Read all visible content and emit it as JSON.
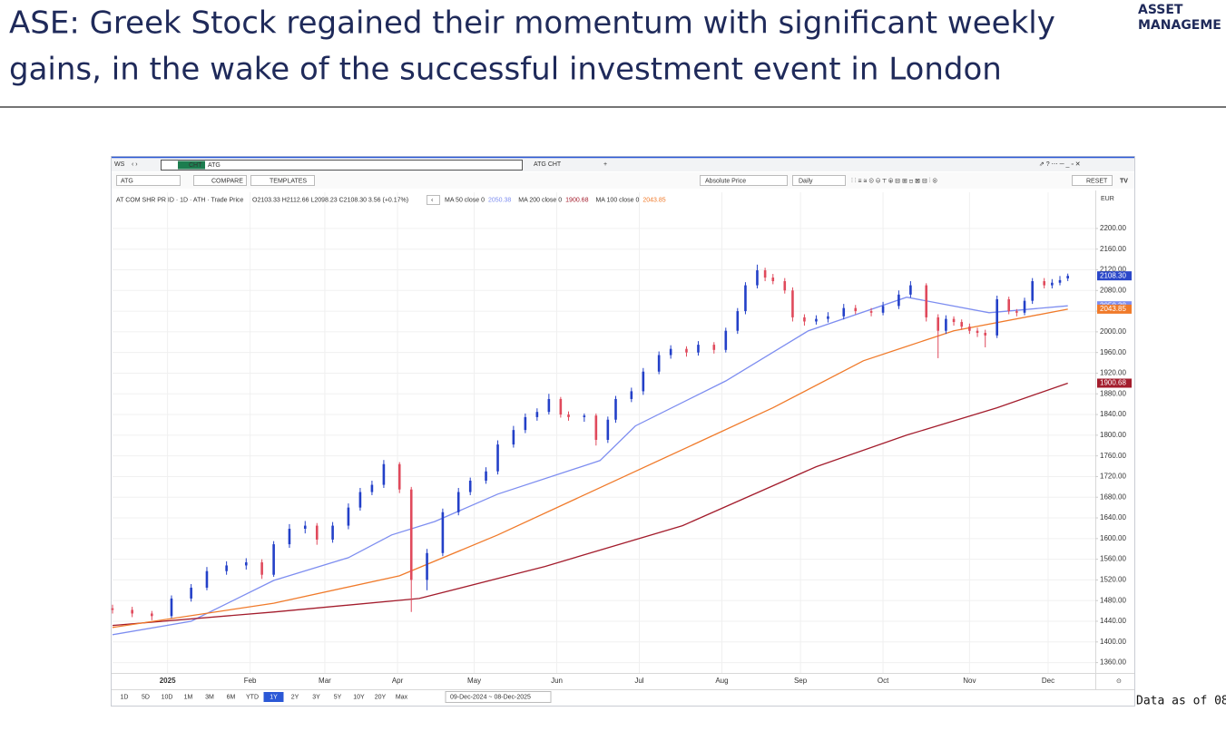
{
  "header": {
    "title": [
      "ASE: Greek Stock regained their momentum with significant weekly",
      "gains, in the wake of the successful investment event in London"
    ],
    "logo": [
      "ASSET",
      "MANAGEME"
    ]
  },
  "toolbar": {
    "workspace": "WS",
    "function": "CHT",
    "ticker": "ATG",
    "tab": "ATG CHT",
    "search": "ATG",
    "compare": "COMPARE",
    "templates": "TEMPLATES",
    "mode": "Absolute Price",
    "period": "Daily",
    "reset": "RESET",
    "currency": "EUR",
    "security": "AT COM SHR PR ID · 1D · ATH · Trade Price",
    "ohlc": "O2103.33 H2112.66 L2098.23 C2108.30 3.56 (+0.17%)",
    "ranges": [
      "1D",
      "5D",
      "10D",
      "1M",
      "3M",
      "6M",
      "YTD",
      "1Y",
      "2Y",
      "3Y",
      "5Y",
      "10Y",
      "20Y",
      "Max"
    ],
    "active_range": "1Y",
    "date_range": "09-Dec-2024 ~ 08-Dec-2025"
  },
  "chart_data": {
    "type": "candlestick",
    "xlim": [
      0,
      250
    ],
    "xticks": [
      {
        "value": 14,
        "label": "2025"
      },
      {
        "value": 35,
        "label": "Feb"
      },
      {
        "value": 54,
        "label": "Mar"
      },
      {
        "value": 72.5,
        "label": "Apr"
      },
      {
        "value": 92,
        "label": "May"
      },
      {
        "value": 113,
        "label": "Jun"
      },
      {
        "value": 134,
        "label": "Jul"
      },
      {
        "value": 155,
        "label": "Aug"
      },
      {
        "value": 175,
        "label": "Sep"
      },
      {
        "value": 196,
        "label": "Oct"
      },
      {
        "value": 218,
        "label": "Nov"
      },
      {
        "value": 238,
        "label": "Dec"
      }
    ],
    "ylim": [
      1340,
      2270
    ],
    "yticks": [
      {
        "value": 1360,
        "label": "1360.00"
      },
      {
        "value": 1400,
        "label": "1400.00"
      },
      {
        "value": 1440,
        "label": "1440.00"
      },
      {
        "value": 1480,
        "label": "1480.00"
      },
      {
        "value": 1520,
        "label": "1520.00"
      },
      {
        "value": 1560,
        "label": "1560.00"
      },
      {
        "value": 1600,
        "label": "1600.00"
      },
      {
        "value": 1640,
        "label": "1640.00"
      },
      {
        "value": 1680,
        "label": "1680.00"
      },
      {
        "value": 1720,
        "label": "1720.00"
      },
      {
        "value": 1760,
        "label": "1760.00"
      },
      {
        "value": 1800,
        "label": "1800.00"
      },
      {
        "value": 1840,
        "label": "1840.00"
      },
      {
        "value": 1880,
        "label": "1880.00"
      },
      {
        "value": 1920,
        "label": "1920.00"
      },
      {
        "value": 1960,
        "label": "1960.00"
      },
      {
        "value": 2000,
        "label": "2000.00"
      },
      {
        "value": 2040,
        "label": "2040.00"
      },
      {
        "value": 2080,
        "label": "2080.00"
      },
      {
        "value": 2120,
        "label": "2120.00"
      },
      {
        "value": 2160,
        "label": "2160.00"
      },
      {
        "value": 2200,
        "label": "2200.00"
      }
    ],
    "grid": true,
    "up_color": "#2340c8",
    "down_color": "#e04a5c",
    "candles": {
      "x": [
        0,
        5,
        10,
        15,
        20,
        24,
        29,
        34,
        38,
        41,
        45,
        49,
        52,
        56,
        60,
        63,
        66,
        69,
        73,
        76,
        80,
        84,
        88,
        91,
        95,
        98,
        102,
        105,
        108,
        111,
        114,
        116,
        120,
        123,
        126,
        128,
        132,
        135,
        139,
        142,
        146,
        149,
        153,
        156,
        159,
        161,
        164,
        166,
        168,
        171,
        173,
        176,
        179,
        182,
        186,
        189,
        193,
        196,
        200,
        203,
        207,
        210,
        212,
        214,
        216,
        218,
        220,
        222,
        225,
        228,
        230,
        232,
        234,
        237,
        239,
        241,
        243
      ],
      "open": [
        1465,
        1462,
        1455,
        1450,
        1484,
        1505,
        1537,
        1548,
        1554,
        1530,
        1589,
        1619,
        1625,
        1598,
        1625,
        1660,
        1690,
        1704,
        1744,
        1695,
        1520,
        1572,
        1651,
        1690,
        1712,
        1730,
        1782,
        1810,
        1835,
        1845,
        1870,
        1840,
        1835,
        1838,
        1791,
        1830,
        1870,
        1885,
        1923,
        1955,
        1967,
        1960,
        1975,
        1965,
        2002,
        2040,
        2090,
        2119,
        2105,
        2098,
        2080,
        2028,
        2020,
        2025,
        2030,
        2046,
        2040,
        2037,
        2050,
        2072,
        2090,
        2028,
        2002,
        2025,
        2019,
        2010,
        2002,
        1998,
        1993,
        2063,
        2040,
        2037,
        2060,
        2098,
        2090,
        2095,
        2103.33
      ],
      "high": [
        1472,
        1468,
        1460,
        1490,
        1512,
        1545,
        1556,
        1562,
        1560,
        1595,
        1628,
        1634,
        1630,
        1632,
        1668,
        1698,
        1712,
        1752,
        1748,
        1700,
        1580,
        1658,
        1698,
        1718,
        1738,
        1790,
        1818,
        1842,
        1852,
        1880,
        1874,
        1846,
        1842,
        1842,
        1836,
        1876,
        1892,
        1930,
        1962,
        1974,
        1972,
        1982,
        1980,
        2008,
        2046,
        2096,
        2130,
        2124,
        2112,
        2104,
        2086,
        2034,
        2032,
        2038,
        2054,
        2052,
        2046,
        2058,
        2080,
        2098,
        2094,
        2034,
        2032,
        2030,
        2024,
        2016,
        2008,
        2004,
        2070,
        2068,
        2044,
        2066,
        2104,
        2104,
        2102,
        2108,
        2112.66
      ],
      "low": [
        1455,
        1448,
        1442,
        1446,
        1478,
        1500,
        1530,
        1540,
        1522,
        1526,
        1582,
        1610,
        1588,
        1592,
        1618,
        1654,
        1684,
        1698,
        1688,
        1458,
        1500,
        1566,
        1645,
        1684,
        1706,
        1724,
        1776,
        1804,
        1828,
        1840,
        1834,
        1828,
        1826,
        1780,
        1785,
        1824,
        1864,
        1878,
        1918,
        1948,
        1952,
        1954,
        1958,
        1960,
        1996,
        2034,
        2084,
        2098,
        2092,
        2074,
        2020,
        2012,
        2014,
        2018,
        2024,
        2034,
        2030,
        2032,
        2044,
        2066,
        2020,
        1949,
        1996,
        2012,
        2004,
        1996,
        1990,
        1970,
        1988,
        2034,
        2030,
        2032,
        2054,
        2084,
        2084,
        2090,
        2098.23
      ],
      "close": [
        1462,
        1455,
        1450,
        1484,
        1505,
        1537,
        1548,
        1554,
        1530,
        1589,
        1619,
        1625,
        1598,
        1625,
        1660,
        1690,
        1704,
        1744,
        1695,
        1520,
        1572,
        1651,
        1690,
        1712,
        1730,
        1782,
        1810,
        1835,
        1845,
        1870,
        1840,
        1835,
        1838,
        1791,
        1830,
        1870,
        1885,
        1923,
        1955,
        1967,
        1960,
        1975,
        1965,
        2002,
        2040,
        2090,
        2119,
        2105,
        2098,
        2080,
        2028,
        2020,
        2025,
        2030,
        2046,
        2040,
        2037,
        2050,
        2072,
        2090,
        2028,
        2002,
        2025,
        2019,
        2010,
        2002,
        1998,
        1993,
        2063,
        2040,
        2037,
        2060,
        2098,
        2090,
        2095,
        2100,
        2108.3
      ],
      "last_label": "2108.30",
      "tag_color": "#2a47c9"
    },
    "series": [
      {
        "name": "MA 50 close 0",
        "color": "#7d8df0",
        "x": [
          0,
          20,
          41,
          60,
          71,
          82,
          98,
          124,
          133,
          156,
          177,
          202,
          223,
          243
        ],
        "values": [
          1414,
          1440,
          1519,
          1563,
          1607,
          1633,
          1686,
          1751,
          1818,
          1905,
          2002,
          2067,
          2037,
          2050.38
        ]
      },
      {
        "name": "MA 200 close 0",
        "color": "#a31c2c",
        "x": [
          0,
          41,
          78,
          110,
          145,
          179,
          202,
          225,
          243
        ],
        "values": [
          1432,
          1458,
          1484,
          1546,
          1625,
          1739,
          1800,
          1853,
          1900.68
        ]
      },
      {
        "name": "MA 100 close 0",
        "color": "#f07a2a",
        "x": [
          0,
          41,
          73,
          98,
          133,
          168,
          191,
          214,
          243
        ],
        "values": [
          1428,
          1475,
          1528,
          1607,
          1730,
          1853,
          1944,
          2002,
          2043.85
        ]
      }
    ]
  },
  "footer": "Data as of 08"
}
